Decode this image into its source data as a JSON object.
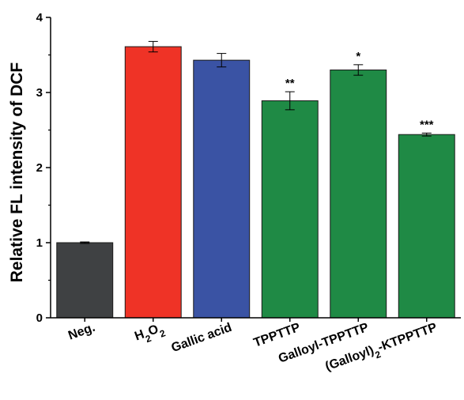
{
  "chart_data": {
    "type": "bar",
    "ylabel": "Relative FL intensity of DCF",
    "xlabel": "",
    "ylim": [
      0,
      4
    ],
    "yticks": [
      0,
      1,
      2,
      3,
      4
    ],
    "grid": false,
    "categories": [
      "Neg.",
      "H2O2",
      "Gallic acid",
      "TPPTTP",
      "Galloyl-TPPTTP",
      "(Galloyl)2-KTPPTTP"
    ],
    "category_labels": [
      [
        {
          "t": "Neg."
        }
      ],
      [
        {
          "t": "H"
        },
        {
          "t": "2",
          "sub": true
        },
        {
          "t": "O"
        },
        {
          "t": "2",
          "sub": true
        }
      ],
      [
        {
          "t": "Gallic acid"
        }
      ],
      [
        {
          "t": "TPPTTP"
        }
      ],
      [
        {
          "t": "Galloyl-TPPTTP"
        }
      ],
      [
        {
          "t": "(Galloyl)"
        },
        {
          "t": "2",
          "sub": true
        },
        {
          "t": "-KTPPTTP"
        }
      ]
    ],
    "values": [
      1.0,
      3.61,
      3.43,
      2.89,
      3.3,
      2.44
    ],
    "errors": [
      0.01,
      0.07,
      0.09,
      0.12,
      0.07,
      0.02
    ],
    "significance": [
      "",
      "",
      "",
      "**",
      "*",
      "***"
    ],
    "colors": [
      "#3f4143",
      "#ef3326",
      "#3a53a4",
      "#1f8a45",
      "#1f8a45",
      "#1f8a45"
    ]
  }
}
